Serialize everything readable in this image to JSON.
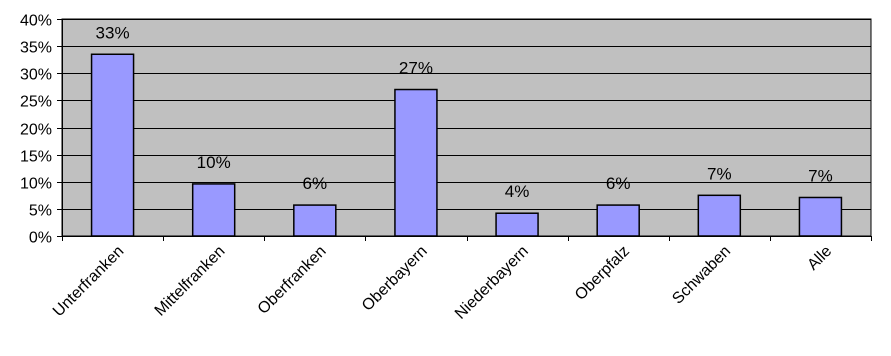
{
  "chart_data": {
    "type": "bar",
    "categories": [
      "Unterfranken",
      "Mittelfranken",
      "Oberfranken",
      "Oberbayern",
      "Niederbayern",
      "Oberpfalz",
      "Schwaben",
      "Alle"
    ],
    "values": [
      33.5,
      9.6,
      5.7,
      27.0,
      4.2,
      5.7,
      7.5,
      7.1
    ],
    "data_labels": [
      "33%",
      "10%",
      "6%",
      "27%",
      "4%",
      "6%",
      "7%",
      "7%"
    ],
    "ylim": [
      0,
      40
    ],
    "yticks": [
      0,
      5,
      10,
      15,
      20,
      25,
      30,
      35,
      40
    ],
    "ytick_labels": [
      "0%",
      "5%",
      "10%",
      "15%",
      "20%",
      "25%",
      "30%",
      "35%",
      "40%"
    ],
    "grid": true,
    "colors": {
      "plot_background": "#c0c0c0",
      "bar_fill": "#9999ff",
      "bar_stroke": "#000000",
      "grid": "#000000"
    },
    "title": "",
    "xlabel": "",
    "ylabel": ""
  }
}
